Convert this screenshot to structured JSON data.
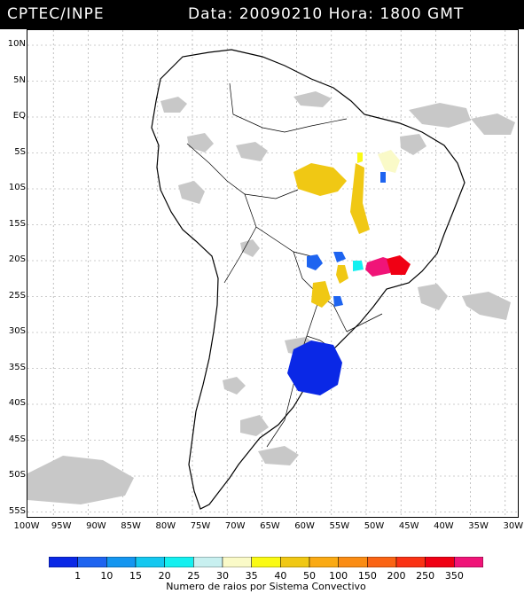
{
  "header": {
    "source": "CPTEC/INPE",
    "datetime": "Data: 20090210 Hora: 1800 GMT"
  },
  "map": {
    "lat_labels": [
      "10N",
      "5N",
      "EQ",
      "5S",
      "10S",
      "15S",
      "20S",
      "25S",
      "30S",
      "35S",
      "40S",
      "45S",
      "50S",
      "55S"
    ],
    "lon_labels": [
      "100W",
      "95W",
      "90W",
      "85W",
      "80W",
      "75W",
      "70W",
      "65W",
      "60W",
      "55W",
      "50W",
      "45W",
      "40W",
      "35W",
      "30W"
    ],
    "colors": {
      "cloud": "#c8c8c8",
      "outline": "#000000",
      "grid": "#9a9a9a"
    }
  },
  "legend": {
    "ticks": [
      "1",
      "10",
      "15",
      "20",
      "25",
      "30",
      "35",
      "40",
      "50",
      "100",
      "150",
      "200",
      "250",
      "350"
    ],
    "colors": [
      "#0a28e6",
      "#1e64f0",
      "#1496f0",
      "#14c8f0",
      "#14f0f0",
      "#c8f0f0",
      "#fafac8",
      "#fafa14",
      "#f0c814",
      "#faaa14",
      "#fa8c14",
      "#fa6414",
      "#fa3214",
      "#f00014",
      "#f01478"
    ],
    "title": "Numero de raios por Sistema Convectivo"
  }
}
